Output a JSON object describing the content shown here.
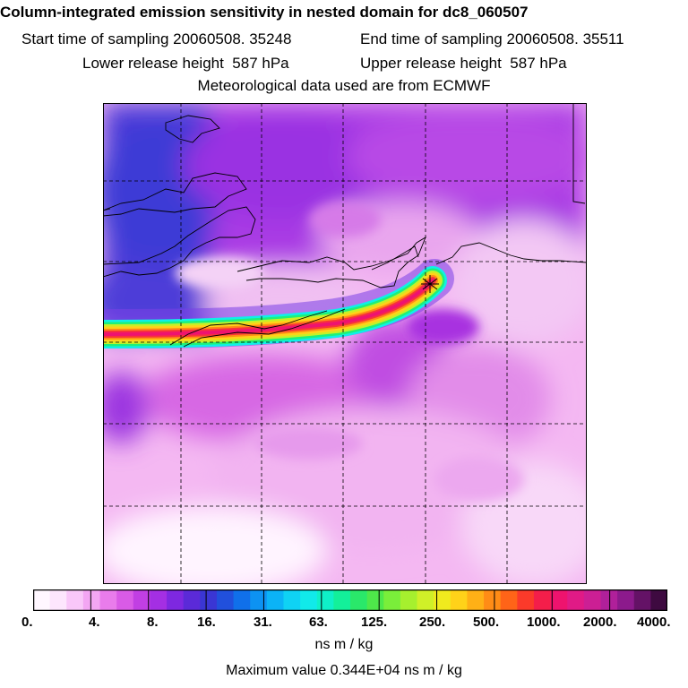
{
  "header": {
    "title": "Column-integrated emission sensitivity in nested domain for dc8_060507",
    "start_label": "Start time of sampling",
    "start_value": "20060508. 35248",
    "end_label": "End time of sampling",
    "end_value": "20060508. 35511",
    "lower_label": "Lower release height",
    "lower_value": "587 hPa",
    "upper_label": "Upper release height",
    "upper_value": "587 hPa",
    "met_line": "Meteorological data used are from ECMWF"
  },
  "colorbar": {
    "ticks": [
      "0.",
      "4.",
      "8.",
      "16.",
      "31.",
      "63.",
      "125.",
      "250.",
      "500.",
      "1000.",
      "2000.",
      "4000."
    ],
    "colors": [
      "#fff7ff",
      "#fde6fd",
      "#f9c7f9",
      "#f3a6f3",
      "#e97ceb",
      "#d95be6",
      "#c13fe3",
      "#a42fe3",
      "#7e28e0",
      "#5b2ad8",
      "#3a36d4",
      "#2150dc",
      "#1070ea",
      "#0d92f2",
      "#0bb3f6",
      "#0fd2f4",
      "#11eaea",
      "#0ff0c8",
      "#13f09a",
      "#2ae86a",
      "#4ee84a",
      "#7aee3a",
      "#a6f02e",
      "#d0f028",
      "#f0ea1e",
      "#ffd219",
      "#ffb016",
      "#ff8c16",
      "#ff6418",
      "#fb3a2a",
      "#f41e4a",
      "#ee136e",
      "#e01a86",
      "#cc1f94",
      "#b0209a",
      "#8c1a8c",
      "#641266",
      "#3e0a40"
    ],
    "units": "ns m / kg",
    "max_label": "Maximum value",
    "max_value": "0.344E+04",
    "max_units": "ns m / kg"
  },
  "map": {
    "release_marker": "release-point",
    "plume_colors": [
      "#0ff0e8",
      "#1ef07a",
      "#c6f028",
      "#ffd219",
      "#ff8c16",
      "#f8333a",
      "#ee1370"
    ]
  }
}
